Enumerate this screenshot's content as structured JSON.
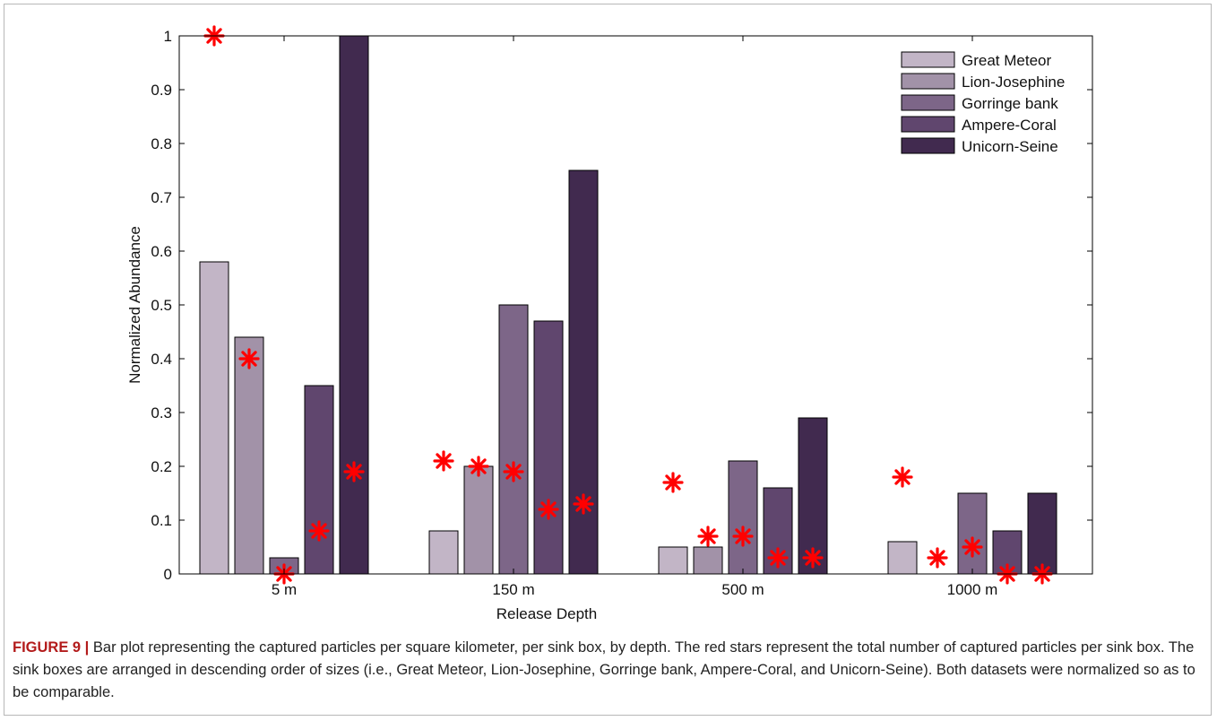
{
  "chart_data": {
    "type": "bar",
    "xlabel": "Release Depth",
    "ylabel": "Normalized Abundance",
    "ylim": [
      0,
      1
    ],
    "yticks": [
      "0",
      "0.1",
      "0.2",
      "0.3",
      "0.4",
      "0.5",
      "0.6",
      "0.7",
      "0.8",
      "0.9",
      "1"
    ],
    "categories": [
      "5 m",
      "150 m",
      "500 m",
      "1000 m"
    ],
    "series": [
      {
        "name": "Great Meteor",
        "values": [
          0.58,
          0.08,
          0.05,
          0.06
        ],
        "color": "#c2b5c6"
      },
      {
        "name": "Lion-Josephine",
        "values": [
          0.44,
          0.2,
          0.05,
          0.0
        ],
        "color": "#a292a8"
      },
      {
        "name": "Gorringe bank",
        "values": [
          0.03,
          0.5,
          0.21,
          0.15
        ],
        "color": "#7d6688"
      },
      {
        "name": "Ampere-Coral",
        "values": [
          0.35,
          0.47,
          0.16,
          0.08
        ],
        "color": "#60466e"
      },
      {
        "name": "Unicorn-Seine",
        "values": [
          1.0,
          0.75,
          0.29,
          0.15
        ],
        "color": "#412a4f"
      }
    ],
    "stars": {
      "color": "#ff0000",
      "values": [
        [
          1.0,
          0.4,
          0.0,
          0.08,
          0.19
        ],
        [
          0.21,
          0.2,
          0.19,
          0.12,
          0.13
        ],
        [
          0.17,
          0.07,
          0.07,
          0.03,
          0.03
        ],
        [
          0.18,
          0.03,
          0.05,
          0.0,
          0.0
        ]
      ]
    },
    "legend": "top-right",
    "grid": false
  },
  "caption": {
    "label": "FIGURE 9 |",
    "text": " Bar plot representing the captured particles per square kilometer, per sink box, by depth. The red stars represent the total number of captured particles per sink box. The sink boxes are arranged in descending order of sizes (i.e., Great Meteor, Lion-Josephine, Gorringe bank, Ampere-Coral, and Unicorn-Seine). Both datasets were normalized so as to be comparable."
  }
}
